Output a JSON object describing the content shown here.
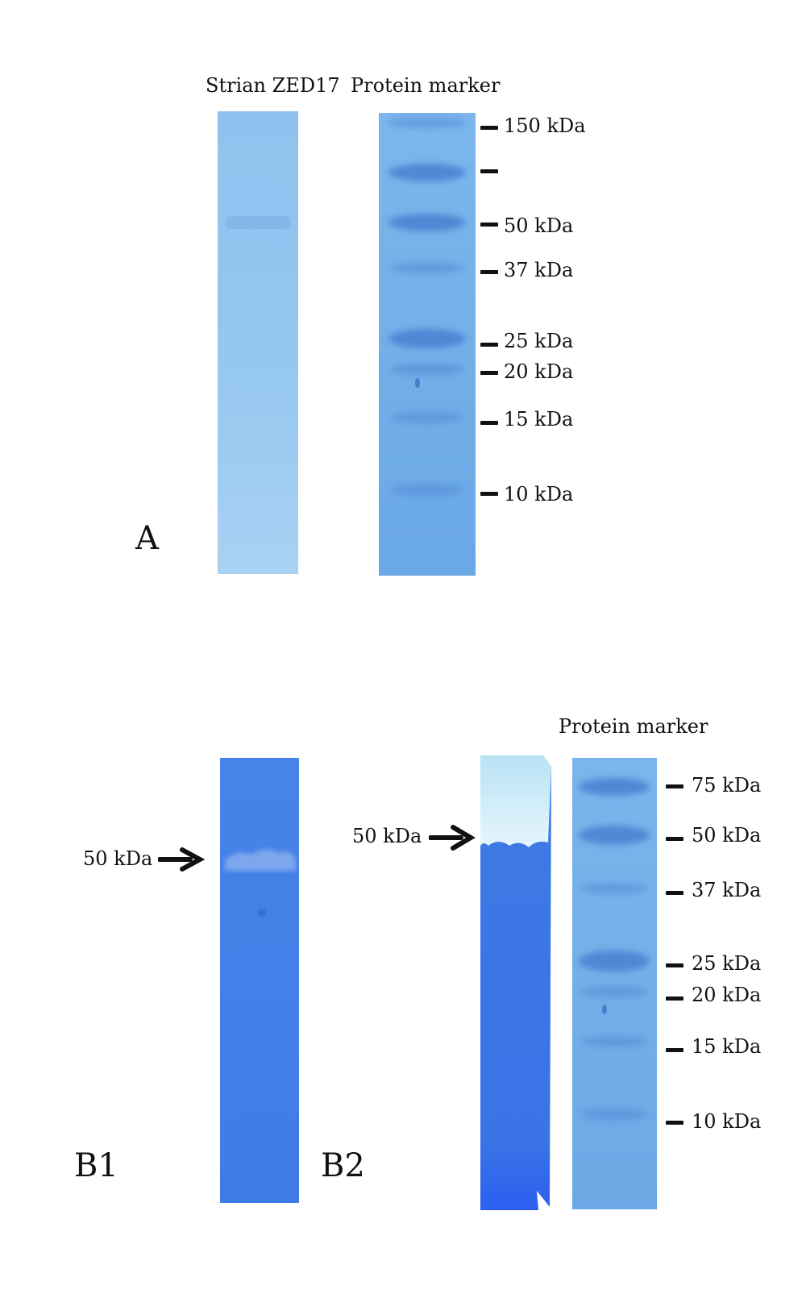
{
  "panel_a": {
    "letter": "A",
    "lane1_label": "Strian ZED17",
    "lane2_label": "Protein marker",
    "ladder": [
      "150 kDa",
      "",
      "50 kDa",
      "37 kDa",
      "25 kDa",
      "20 kDa",
      "15 kDa",
      "10 kDa"
    ]
  },
  "panel_b": {
    "letter_b1": "B1",
    "letter_b2": "B2",
    "b1_arrow_label": "50 kDa",
    "b2_arrow_label": "50 kDa",
    "marker_label": "Protein marker",
    "ladder": [
      "75 kDa",
      "50 kDa",
      "37 kDa",
      "25 kDa",
      "20 kDa",
      "15 kDa",
      "10 kDa"
    ]
  },
  "colors": {
    "lane_light": "#8fc4f0",
    "lane_marker": "#6aaae8",
    "lane_dark": "#3f7be6",
    "band": "#4a86d8",
    "clear_zone": "#d9f0fb"
  }
}
